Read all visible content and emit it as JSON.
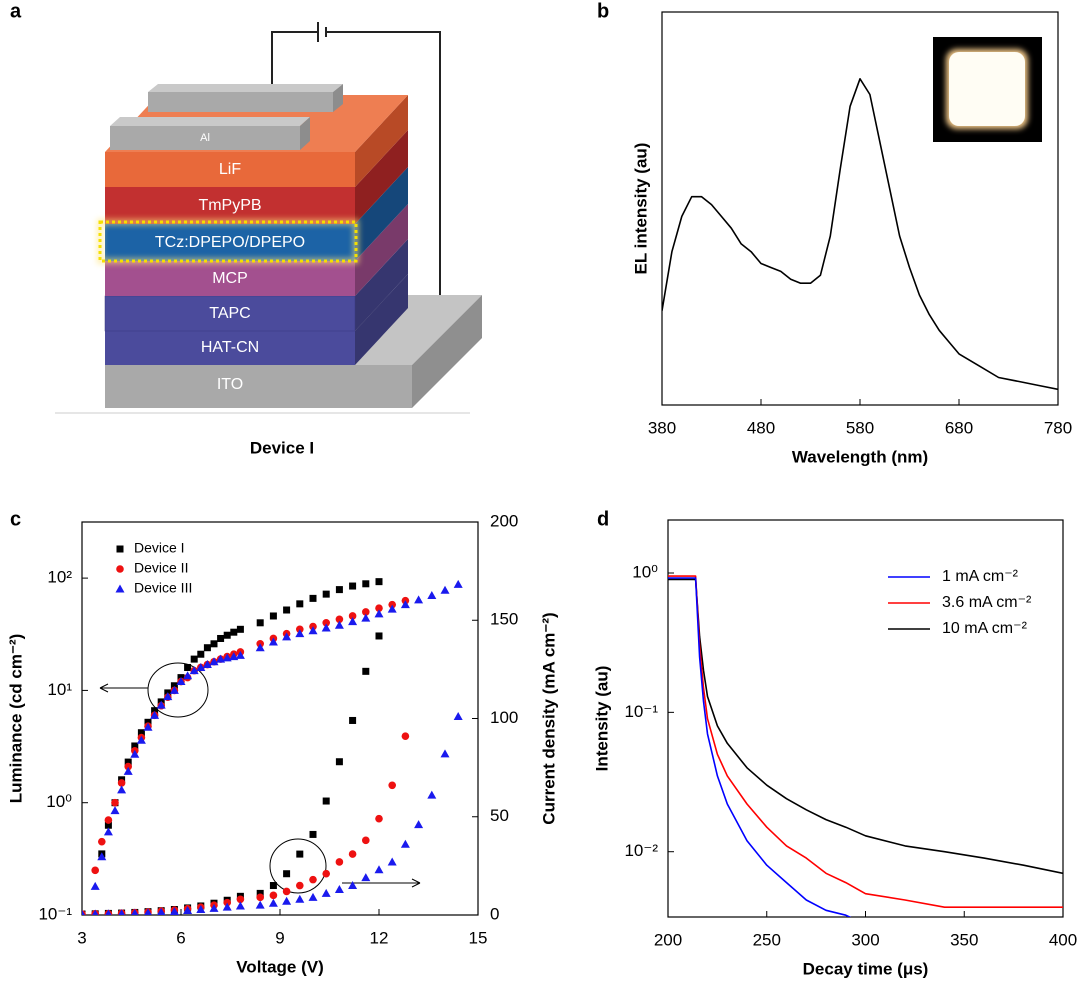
{
  "device_diagram": {
    "panel": "a",
    "layers": [
      "Al",
      "LiF",
      "TmPyPB",
      "TCz:DPEPO/DPEPO",
      "MCP",
      "TAPC",
      "HAT-CN",
      "ITO"
    ],
    "caption": "Device I"
  },
  "chart_data": [
    {
      "type": "line",
      "panel": "b",
      "xlabel": "Wavelength (nm)",
      "ylabel": "EL intensity (au)",
      "x": [
        380,
        390,
        400,
        410,
        420,
        430,
        440,
        450,
        460,
        470,
        480,
        490,
        500,
        510,
        520,
        530,
        540,
        550,
        560,
        570,
        580,
        590,
        600,
        610,
        620,
        630,
        640,
        650,
        660,
        670,
        680,
        700,
        720,
        740,
        760,
        780
      ],
      "values": [
        0.24,
        0.39,
        0.48,
        0.53,
        0.53,
        0.51,
        0.48,
        0.45,
        0.41,
        0.39,
        0.36,
        0.35,
        0.34,
        0.32,
        0.31,
        0.31,
        0.33,
        0.43,
        0.6,
        0.76,
        0.83,
        0.79,
        0.67,
        0.55,
        0.43,
        0.35,
        0.28,
        0.23,
        0.19,
        0.16,
        0.13,
        0.1,
        0.07,
        0.06,
        0.05,
        0.04
      ],
      "color": "#000000",
      "xlim": [
        380,
        780
      ],
      "xticks": [
        380,
        480,
        580,
        680,
        780
      ],
      "ylim": [
        0,
        1
      ]
    },
    {
      "type": "scatter",
      "panel": "c",
      "xlabel": "Voltage (V)",
      "ylabel": "Luminance (cd cm⁻²)",
      "y2label": "Current density (mA cm⁻²)",
      "xlim": [
        3,
        15
      ],
      "xticks": [
        3,
        6,
        9,
        12,
        15
      ],
      "ylim": [
        0.1,
        316
      ],
      "ylog": true,
      "yticks": [
        {
          "value": 0.1,
          "label": "10⁻¹"
        },
        {
          "value": 1,
          "label": "10⁰"
        },
        {
          "value": 10,
          "label": "10¹"
        },
        {
          "value": 100,
          "label": "10²"
        }
      ],
      "y2lim": [
        0,
        200
      ],
      "y2ticks": [
        0,
        50,
        100,
        150,
        200
      ],
      "legend": "upper left",
      "series": [
        {
          "name": "Device I",
          "color": "#000000",
          "marker": "square",
          "luminance": {
            "x": [
              3.6,
              3.8,
              4.0,
              4.2,
              4.4,
              4.6,
              4.8,
              5.0,
              5.2,
              5.4,
              5.6,
              5.8,
              6.0,
              6.2,
              6.4,
              6.6,
              6.8,
              7.0,
              7.2,
              7.4,
              7.6,
              7.8,
              8.4,
              8.8,
              9.2,
              9.6,
              10.0,
              10.4,
              10.8,
              11.2,
              11.6,
              12.0
            ],
            "values": [
              0.35,
              0.63,
              1.0,
              1.6,
              2.3,
              3.2,
              4.2,
              5.2,
              6.6,
              7.9,
              9.5,
              11,
              13,
              16,
              19,
              21,
              24,
              26,
              29,
              31,
              33,
              35,
              40,
              46,
              52,
              59,
              66,
              72,
              79,
              85,
              89,
              93
            ]
          },
          "current_density": {
            "axis": "y2",
            "x": [
              3.0,
              3.4,
              3.8,
              4.2,
              4.6,
              5.0,
              5.4,
              5.8,
              6.2,
              6.6,
              7.0,
              7.4,
              7.8,
              8.4,
              8.8,
              9.2,
              9.6,
              10.0,
              10.4,
              10.8,
              11.2,
              11.6,
              12.0
            ],
            "values": [
              0.5,
              0.6,
              0.8,
              1,
              1.3,
              1.7,
              2.2,
              2.8,
              3.6,
              4.6,
              6,
              7.5,
              9.5,
              11,
              15,
              21,
              31,
              41,
              58,
              78,
              99,
              124,
              142
            ]
          }
        },
        {
          "name": "Device II",
          "color": "#ee1111",
          "marker": "circle",
          "luminance": {
            "x": [
              3.4,
              3.6,
              3.8,
              4.0,
              4.2,
              4.4,
              4.6,
              4.8,
              5.0,
              5.2,
              5.4,
              5.6,
              5.8,
              6.0,
              6.2,
              6.4,
              6.6,
              6.8,
              7.0,
              7.2,
              7.4,
              7.6,
              7.8,
              8.4,
              8.8,
              9.2,
              9.6,
              10.0,
              10.4,
              10.8,
              11.2,
              11.6,
              12.0,
              12.4,
              12.8
            ],
            "values": [
              0.25,
              0.45,
              0.7,
              1.0,
              1.5,
              2.1,
              2.9,
              3.8,
              4.8,
              6.0,
              7.3,
              8.7,
              10,
              12,
              13,
              15,
              16,
              17,
              18,
              19,
              20,
              21,
              22,
              26,
              29,
              32,
              35,
              37,
              40,
              43,
              46,
              50,
              54,
              58,
              63
            ]
          },
          "current_density": {
            "axis": "y2",
            "x": [
              3.0,
              3.4,
              3.8,
              4.2,
              4.6,
              5.0,
              5.4,
              5.8,
              6.2,
              6.6,
              7.0,
              7.4,
              7.8,
              8.4,
              8.8,
              9.2,
              9.6,
              10.0,
              10.4,
              10.8,
              11.2,
              11.6,
              12.0,
              12.4,
              12.8
            ],
            "values": [
              0.5,
              0.6,
              0.7,
              0.9,
              1.2,
              1.5,
              2,
              2.5,
              3.2,
              4,
              5,
              6.3,
              8,
              9,
              10,
              12,
              15,
              18,
              21,
              27,
              31,
              38,
              49,
              66,
              91
            ]
          }
        },
        {
          "name": "Device III",
          "color": "#1a1aee",
          "marker": "triangle",
          "luminance": {
            "x": [
              3.4,
              3.6,
              3.8,
              4.0,
              4.2,
              4.4,
              4.6,
              4.8,
              5.0,
              5.2,
              5.4,
              5.6,
              5.8,
              6.0,
              6.2,
              6.4,
              6.6,
              6.8,
              7.0,
              7.2,
              7.4,
              7.6,
              7.8,
              8.4,
              8.8,
              9.2,
              9.6,
              10.0,
              10.4,
              10.8,
              11.2,
              11.6,
              12.0,
              12.4,
              12.8,
              13.2,
              13.6,
              14.0,
              14.4
            ],
            "values": [
              0.18,
              0.33,
              0.55,
              0.85,
              1.3,
              1.9,
              2.7,
              3.6,
              4.7,
              6.0,
              7.4,
              8.8,
              10,
              12,
              13.5,
              15,
              16,
              17,
              18,
              19,
              19.5,
              20,
              20.5,
              24,
              27,
              30,
              32,
              34,
              36,
              38,
              41,
              44,
              48,
              53,
              58,
              64,
              70,
              78,
              88
            ]
          },
          "current_density": {
            "axis": "y2",
            "x": [
              3.0,
              3.4,
              3.8,
              4.2,
              4.6,
              5.0,
              5.4,
              5.8,
              6.2,
              6.6,
              7.0,
              7.4,
              7.8,
              8.4,
              8.8,
              9.2,
              9.6,
              10.0,
              10.4,
              10.8,
              11.2,
              11.6,
              12.0,
              12.4,
              12.8,
              13.2,
              13.6,
              14.0,
              14.4
            ],
            "values": [
              0.4,
              0.5,
              0.6,
              0.7,
              0.9,
              1.1,
              1.4,
              1.8,
              2.3,
              2.8,
              3.4,
              4,
              4.6,
              5,
              6,
              7,
              8,
              9,
              11,
              13,
              15,
              19,
              23,
              27,
              36,
              46,
              61,
              82,
              101
            ]
          }
        }
      ]
    },
    {
      "type": "line",
      "panel": "d",
      "xlabel": "Decay time (μs)",
      "ylabel": "Intensity (au)",
      "xlim": [
        200,
        400
      ],
      "xticks": [
        200,
        250,
        300,
        350,
        400
      ],
      "ylim": [
        0.0034,
        2.4
      ],
      "ylog": true,
      "yticks": [
        {
          "value": 1,
          "label": "10⁰"
        },
        {
          "value": 0.1,
          "label": "10⁻¹"
        },
        {
          "value": 0.01,
          "label": "10⁻²"
        }
      ],
      "legend": "upper right",
      "x": [
        200,
        205,
        210,
        214,
        216,
        218,
        220,
        225,
        230,
        240,
        250,
        260,
        270,
        280,
        290,
        300,
        320,
        340,
        360,
        380,
        400
      ],
      "series": [
        {
          "name": "1 mA cm⁻²",
          "color": "#0000ff",
          "values": [
            0.92,
            0.92,
            0.92,
            0.92,
            0.25,
            0.12,
            0.07,
            0.035,
            0.022,
            0.012,
            0.008,
            0.006,
            0.0045,
            0.0038,
            0.0035,
            0.003,
            null,
            null,
            null,
            null,
            null
          ]
        },
        {
          "name": "3.6 mA cm⁻²",
          "color": "#ff0000",
          "values": [
            0.95,
            0.95,
            0.95,
            0.95,
            0.3,
            0.15,
            0.09,
            0.05,
            0.035,
            0.022,
            0.015,
            0.011,
            0.009,
            0.007,
            0.006,
            0.005,
            0.0045,
            0.004,
            0.004,
            0.004,
            0.004
          ]
        },
        {
          "name": "10 mA cm⁻²",
          "color": "#000000",
          "values": [
            0.9,
            0.9,
            0.9,
            0.9,
            0.35,
            0.2,
            0.13,
            0.08,
            0.06,
            0.04,
            0.03,
            0.024,
            0.02,
            0.017,
            0.015,
            0.013,
            0.011,
            0.01,
            0.009,
            0.008,
            0.007
          ]
        }
      ]
    }
  ]
}
